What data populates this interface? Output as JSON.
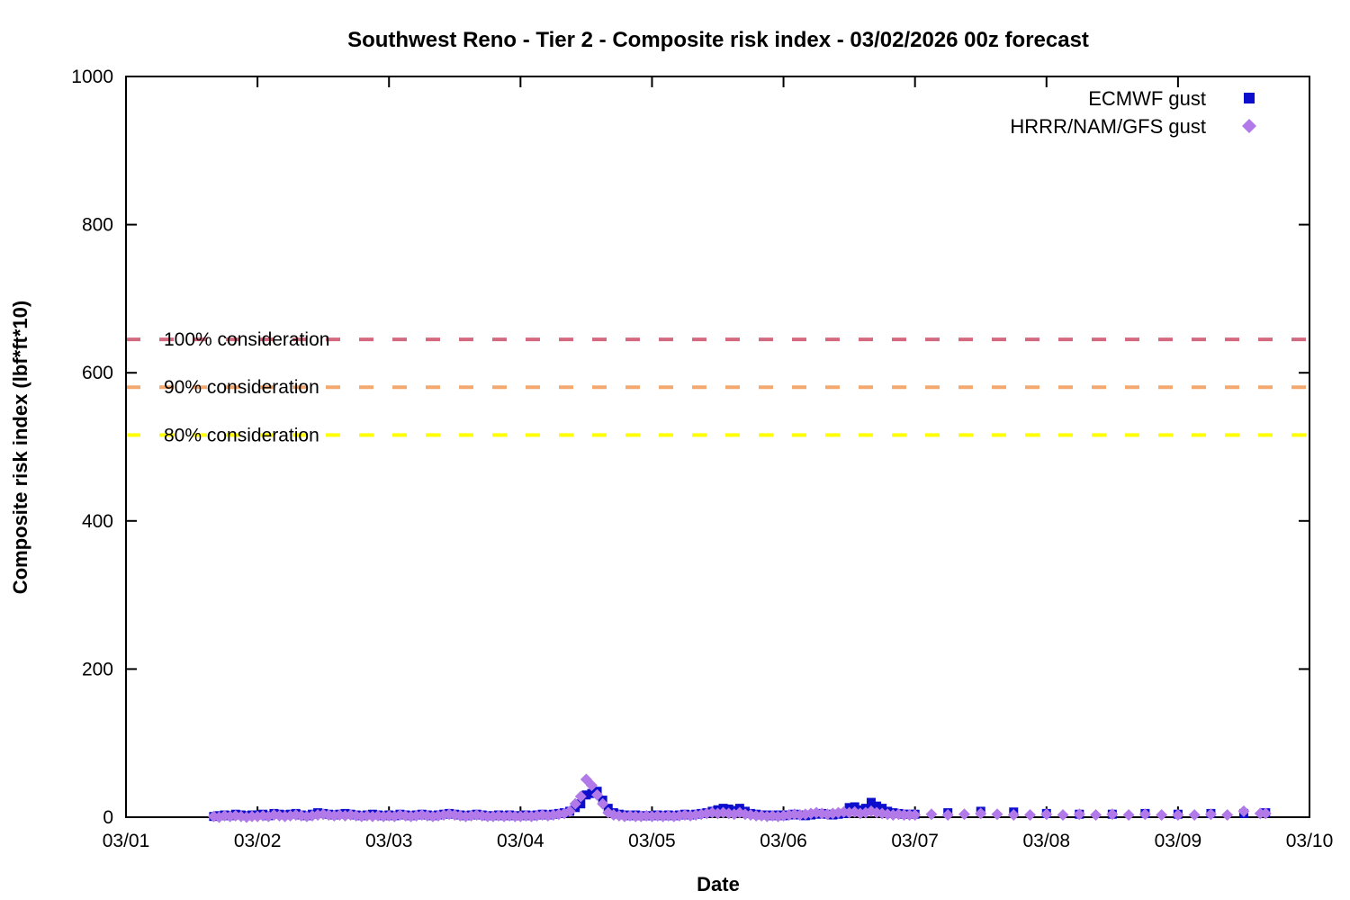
{
  "title": "Southwest Reno - Tier 2 - Composite risk index - 03/02/2026 00z forecast",
  "axes": {
    "x": {
      "label": "Date",
      "tick_labels": [
        "03/01",
        "03/02",
        "03/03",
        "03/04",
        "03/05",
        "03/06",
        "03/07",
        "03/08",
        "03/09",
        "03/10"
      ],
      "range_days": [
        0,
        9
      ]
    },
    "y": {
      "label": "Composite risk index (lbf*ft*10)",
      "tick_values": [
        0,
        200,
        400,
        600,
        800,
        1000
      ],
      "range": [
        0,
        1000
      ]
    }
  },
  "thresholds": [
    {
      "label": "100% consideration",
      "value": 645,
      "color": "#d4687e"
    },
    {
      "label": "90% consideration",
      "value": 580.5,
      "color": "#f4a86e"
    },
    {
      "label": "80% consideration",
      "value": 516,
      "color": "#ffff00"
    }
  ],
  "legend": {
    "position": "top-right-inside",
    "items": [
      {
        "label": "ECMWF gust",
        "marker": "square",
        "color": "#0d0dcd"
      },
      {
        "label": "HRRR/NAM/GFS gust",
        "marker": "diamond",
        "color": "#b27ae8"
      }
    ]
  },
  "chart_data": {
    "type": "scatter",
    "title": "Southwest Reno - Tier 2 - Composite risk index - 03/02/2026 00z forecast",
    "xlabel": "Date",
    "ylabel": "Composite risk index (lbf*ft*10)",
    "xlim_days": [
      0,
      9
    ],
    "ylim": [
      0,
      1000
    ],
    "x_encoding": "t = start_day + (start_hour + i*step_hours)/24, day 0 = 03/01 00:00",
    "grid": false,
    "series": [
      {
        "name": "ECMWF gust",
        "marker": "square",
        "color": "#0d0dcd",
        "segments": [
          {
            "start_day": 0,
            "start_hour": 16,
            "step_hours": 1,
            "values": [
              1,
              2,
              3,
              2,
              4,
              3,
              2,
              3
            ]
          },
          {
            "start_day": 1,
            "start_hour": 0,
            "step_hours": 1,
            "values": [
              3,
              4,
              2,
              5,
              4,
              3,
              4,
              5,
              3,
              2,
              4,
              6,
              5,
              4,
              3,
              4,
              5,
              4,
              3,
              2,
              3,
              4,
              3,
              2
            ]
          },
          {
            "start_day": 2,
            "start_hour": 0,
            "step_hours": 1,
            "values": [
              3,
              2,
              4,
              3,
              2,
              3,
              4,
              3,
              2,
              3,
              4,
              5,
              4,
              3,
              2,
              3,
              4,
              3,
              2,
              2,
              3,
              2,
              3,
              2
            ]
          },
          {
            "start_day": 3,
            "start_hour": 0,
            "step_hours": 1,
            "values": [
              2,
              3,
              2,
              3,
              4,
              3,
              4,
              5,
              6,
              8,
              13,
              18,
              30,
              32,
              35,
              23,
              12,
              6,
              4,
              3,
              2,
              3,
              2,
              2
            ]
          },
          {
            "start_day": 4,
            "start_hour": 0,
            "step_hours": 1,
            "values": [
              2,
              3,
              2,
              3,
              2,
              3,
              4,
              3,
              4,
              5,
              6,
              8,
              10,
              12,
              11,
              9,
              12,
              8,
              5,
              4,
              3,
              3,
              2,
              3
            ]
          },
          {
            "start_day": 5,
            "start_hour": 0,
            "step_hours": 1,
            "values": [
              2,
              3,
              4,
              3,
              2,
              3,
              4,
              5,
              4,
              3,
              4,
              5,
              13,
              14,
              10,
              12,
              20,
              15,
              12,
              8,
              6,
              5,
              4,
              4
            ]
          },
          {
            "start_day": 6,
            "start_hour": 0,
            "step_hours": 6,
            "values": [
              4,
              6,
              8,
              7,
              5,
              4,
              4,
              5,
              4,
              5,
              5
            ]
          },
          {
            "start_day": 8,
            "start_hour": 16,
            "step_hours": 1,
            "values": [
              6
            ]
          }
        ]
      },
      {
        "name": "HRRR/NAM/GFS gust",
        "marker": "diamond",
        "color": "#b27ae8",
        "segments": [
          {
            "start_day": 0,
            "start_hour": 16,
            "step_hours": 1,
            "values": [
              1,
              0,
              2,
              1,
              2,
              1,
              0,
              1
            ]
          },
          {
            "start_day": 1,
            "start_hour": 0,
            "step_hours": 1,
            "values": [
              1,
              2,
              1,
              3,
              2,
              1,
              2,
              3,
              2,
              1,
              2,
              3,
              4,
              3,
              2,
              3,
              2,
              3,
              2,
              1,
              2,
              1,
              2,
              1
            ]
          },
          {
            "start_day": 2,
            "start_hour": 0,
            "step_hours": 1,
            "values": [
              2,
              1,
              3,
              2,
              1,
              2,
              3,
              2,
              1,
              2,
              3,
              4,
              3,
              2,
              1,
              2,
              3,
              2,
              1,
              1,
              2,
              1,
              2,
              1
            ]
          },
          {
            "start_day": 3,
            "start_hour": 0,
            "step_hours": 1,
            "values": [
              1,
              2,
              1,
              2,
              3,
              2,
              3,
              4,
              5,
              8,
              18,
              28,
              51,
              43,
              30,
              18,
              6,
              3,
              2,
              1,
              2,
              1,
              1,
              2
            ]
          },
          {
            "start_day": 4,
            "start_hour": 0,
            "step_hours": 1,
            "values": [
              1,
              2,
              1,
              2,
              1,
              2,
              3,
              2,
              3,
              4,
              5,
              6,
              5,
              6,
              5,
              4,
              6,
              4,
              3,
              2,
              2,
              1,
              2,
              1
            ]
          },
          {
            "start_day": 5,
            "start_hour": 0,
            "step_hours": 1,
            "values": [
              2,
              3,
              4,
              3,
              4,
              5,
              6,
              5,
              4,
              5,
              6,
              7,
              6,
              7,
              5,
              6,
              8,
              6,
              5,
              4,
              3,
              4,
              3,
              3
            ]
          },
          {
            "start_day": 6,
            "start_hour": 0,
            "step_hours": 3,
            "values": [
              3,
              4,
              3,
              4,
              5,
              4,
              3,
              3,
              4,
              3,
              4,
              3,
              4,
              3,
              4,
              3,
              3,
              3,
              4,
              3,
              8,
              5
            ]
          },
          {
            "start_day": 8,
            "start_hour": 16,
            "step_hours": 1,
            "values": [
              5
            ]
          }
        ]
      }
    ],
    "reference_lines": [
      {
        "label": "100% consideration",
        "y": 645,
        "style": "dashed",
        "color": "#d4687e"
      },
      {
        "label": "90% consideration",
        "y": 580.5,
        "style": "dashed",
        "color": "#f4a86e"
      },
      {
        "label": "80% consideration",
        "y": 516,
        "style": "dashed",
        "color": "#ffff00"
      }
    ],
    "legend_position": "top right inside"
  }
}
